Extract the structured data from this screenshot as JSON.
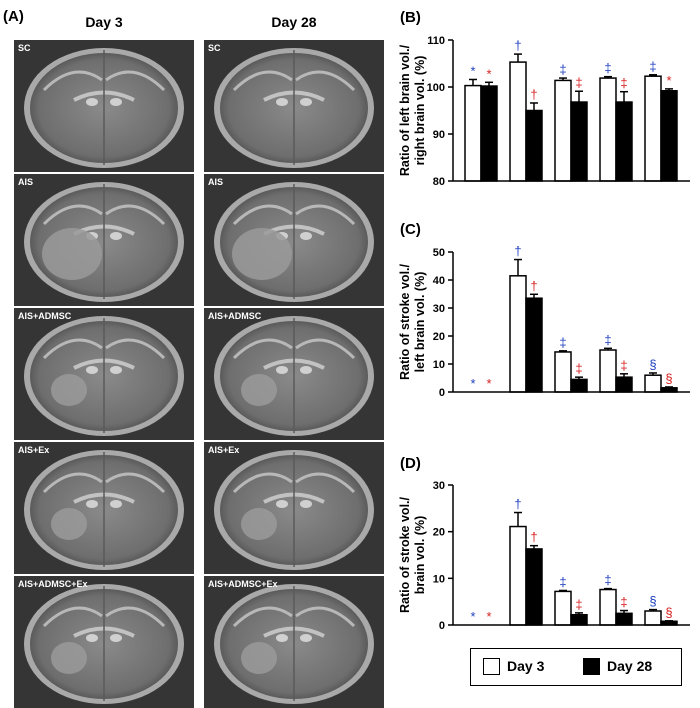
{
  "panel_a": {
    "letter": "(A)",
    "columns": [
      "Day 3",
      "Day 28"
    ],
    "rows": [
      "SC",
      "AIS",
      "AIS+ADMSC",
      "AIS+Ex",
      "AIS+ADMSC+Ex"
    ]
  },
  "legend": {
    "day3": "Day 3",
    "day28": "Day 28"
  },
  "colors": {
    "day3_fill": "#ffffff",
    "day28_fill": "#000000",
    "sym_day3": "#1f3fbf",
    "sym_day28": "#d62020"
  },
  "chart_data": [
    {
      "letter": "(B)",
      "type": "bar",
      "ylabel_lines": [
        "Ratio of left brain vol./",
        "right brain vol. (%)"
      ],
      "ylim": [
        80,
        110
      ],
      "yticks": [
        80,
        90,
        100,
        110
      ],
      "groups": 5,
      "series": [
        {
          "name": "Day 3",
          "values": [
            100.3,
            105.3,
            101.4,
            101.9,
            102.3
          ],
          "errors": [
            1.3,
            1.7,
            0.5,
            0.3,
            0.3
          ],
          "symbols": [
            "*",
            "†",
            "‡",
            "‡",
            "‡"
          ]
        },
        {
          "name": "Day 28",
          "values": [
            100.2,
            95.0,
            96.8,
            96.8,
            99.2
          ],
          "errors": [
            0.8,
            1.6,
            2.3,
            2.2,
            0.4
          ],
          "symbols": [
            "*",
            "†",
            "‡",
            "‡",
            "*"
          ]
        }
      ]
    },
    {
      "letter": "(C)",
      "type": "bar",
      "ylabel_lines": [
        "Ratio of stroke vol./",
        "left brain vol. (%)"
      ],
      "ylim": [
        0,
        50
      ],
      "yticks": [
        0,
        10,
        20,
        30,
        40,
        50
      ],
      "groups": 5,
      "series": [
        {
          "name": "Day 3",
          "values": [
            0,
            41.5,
            14.3,
            15.0,
            6.0
          ],
          "errors": [
            0,
            5.8,
            0.4,
            0.6,
            0.8
          ],
          "symbols": [
            "*",
            "†",
            "‡",
            "‡",
            "§"
          ]
        },
        {
          "name": "Day 28",
          "values": [
            0,
            33.5,
            4.5,
            5.3,
            1.5
          ],
          "errors": [
            0,
            1.4,
            0.8,
            1.2,
            0.3
          ],
          "symbols": [
            "*",
            "†",
            "‡",
            "‡",
            "§"
          ]
        }
      ]
    },
    {
      "letter": "(D)",
      "type": "bar",
      "ylabel_lines": [
        "Ratio of stroke vol./",
        "brain vol. (%)"
      ],
      "ylim": [
        0,
        30
      ],
      "yticks": [
        0,
        10,
        20,
        30
      ],
      "groups": 5,
      "series": [
        {
          "name": "Day 3",
          "values": [
            0,
            21.1,
            7.2,
            7.6,
            3.0
          ],
          "errors": [
            0,
            3.0,
            0.2,
            0.2,
            0.3
          ],
          "symbols": [
            "*",
            "†",
            "‡",
            "‡",
            "§"
          ]
        },
        {
          "name": "Day 28",
          "values": [
            0,
            16.3,
            2.2,
            2.5,
            0.8
          ],
          "errors": [
            0,
            0.7,
            0.4,
            0.6,
            0.1
          ],
          "symbols": [
            "*",
            "†",
            "‡",
            "‡",
            "§"
          ]
        }
      ]
    }
  ]
}
